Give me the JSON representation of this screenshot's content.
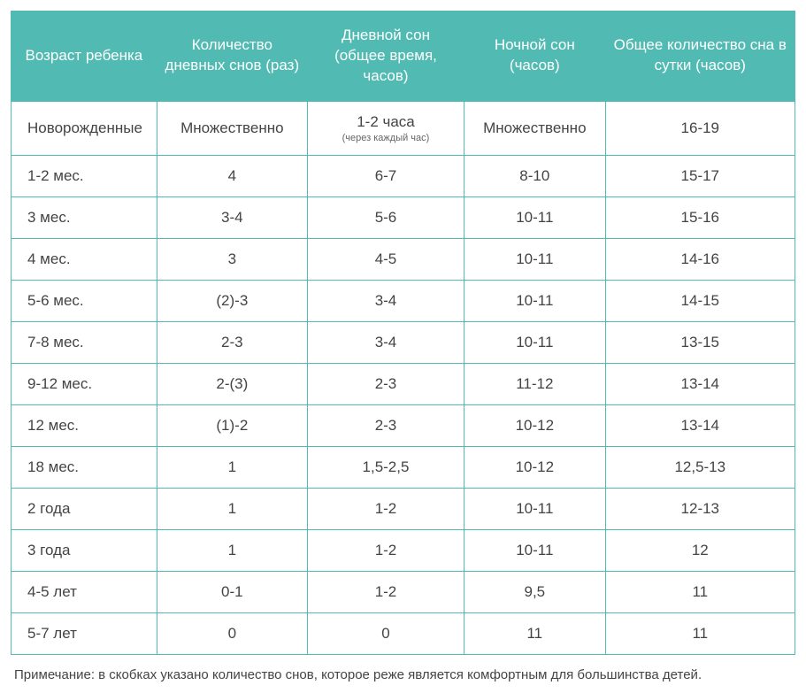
{
  "table": {
    "colors": {
      "header_bg": "#51bab2",
      "header_text": "#ffffff",
      "border": "#51bab2",
      "body_text": "#444444",
      "body_bg": "#ffffff",
      "subnote_text": "#666666"
    },
    "typography": {
      "header_fontsize": 17,
      "body_fontsize": 17,
      "subnote_fontsize": 11,
      "footnote_fontsize": 15
    },
    "columns": [
      "Возраст ребенка",
      "Количество дневных снов (раз)",
      "Дневной сон (общее время, часов)",
      "Ночной сон (часов)",
      "Общее количество сна в сутки (часов)"
    ],
    "column_widths_pct": [
      18.6,
      19.2,
      20.0,
      18.0,
      24.2
    ],
    "rows": [
      {
        "age": "Новорожденные",
        "naps": "Множественно",
        "day_sleep": "1-2 часа",
        "day_sleep_note": "(через каждый час)",
        "night_sleep": "Множественно",
        "total_sleep": "16-19"
      },
      {
        "age": "1-2 мес.",
        "naps": "4",
        "day_sleep": "6-7",
        "night_sleep": "8-10",
        "total_sleep": "15-17"
      },
      {
        "age": "3 мес.",
        "naps": "3-4",
        "day_sleep": "5-6",
        "night_sleep": "10-11",
        "total_sleep": "15-16"
      },
      {
        "age": "4 мес.",
        "naps": "3",
        "day_sleep": "4-5",
        "night_sleep": "10-11",
        "total_sleep": "14-16"
      },
      {
        "age": "5-6 мес.",
        "naps": "(2)-3",
        "day_sleep": "3-4",
        "night_sleep": "10-11",
        "total_sleep": "14-15"
      },
      {
        "age": "7-8 мес.",
        "naps": "2-3",
        "day_sleep": "3-4",
        "night_sleep": "10-11",
        "total_sleep": "13-15"
      },
      {
        "age": "9-12 мес.",
        "naps": "2-(3)",
        "day_sleep": "2-3",
        "night_sleep": "11-12",
        "total_sleep": "13-14"
      },
      {
        "age": "12 мес.",
        "naps": "(1)-2",
        "day_sleep": "2-3",
        "night_sleep": "10-12",
        "total_sleep": "13-14"
      },
      {
        "age": "18 мес.",
        "naps": "1",
        "day_sleep": "1,5-2,5",
        "night_sleep": "10-12",
        "total_sleep": "12,5-13"
      },
      {
        "age": "2 года",
        "naps": "1",
        "day_sleep": "1-2",
        "night_sleep": "10-11",
        "total_sleep": "12-13"
      },
      {
        "age": "3 года",
        "naps": "1",
        "day_sleep": "1-2",
        "night_sleep": "10-11",
        "total_sleep": "12"
      },
      {
        "age": "4-5 лет",
        "naps": "0-1",
        "day_sleep": "1-2",
        "night_sleep": "9,5",
        "total_sleep": "11"
      },
      {
        "age": "5-7 лет",
        "naps": "0",
        "day_sleep": "0",
        "night_sleep": "11",
        "total_sleep": "11"
      }
    ]
  },
  "footnote": "Примечание: в скобках указано количество снов, которое реже является комфортным для большинства детей."
}
